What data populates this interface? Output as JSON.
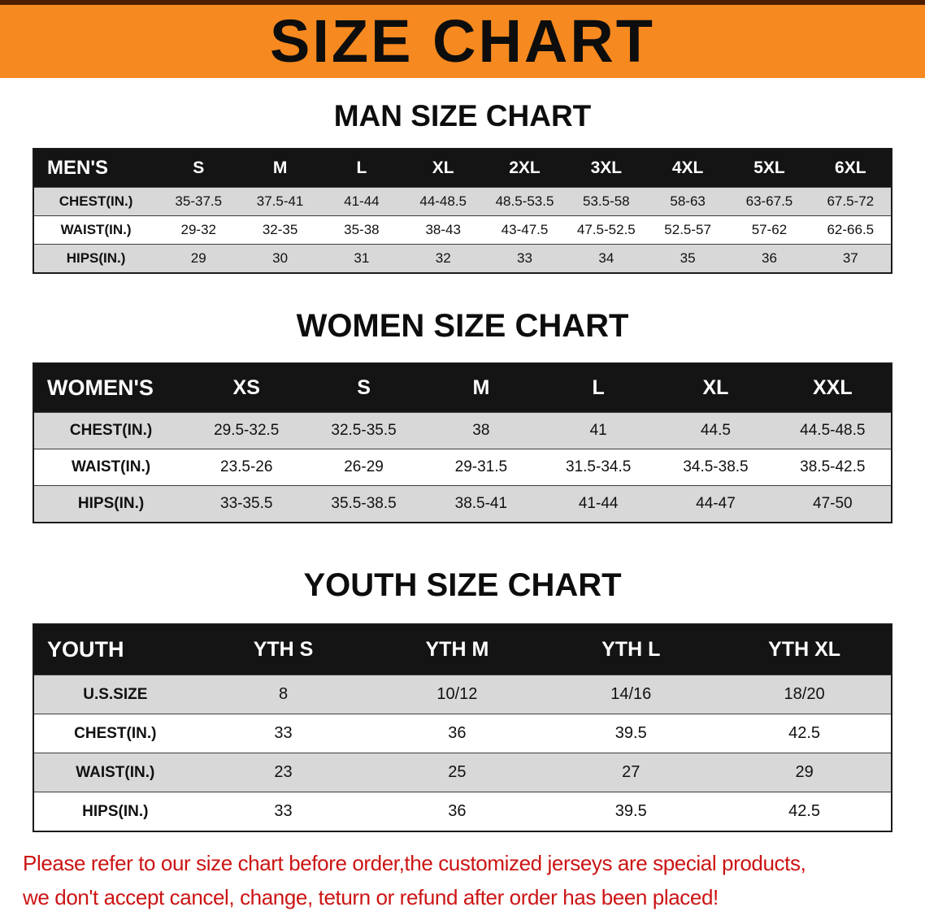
{
  "banner": {
    "title": "SIZE CHART"
  },
  "sections": [
    {
      "heading": "MAN SIZE CHART",
      "table": {
        "header": [
          "MEN'S",
          "S",
          "M",
          "L",
          "XL",
          "2XL",
          "3XL",
          "4XL",
          "5XL",
          "6XL"
        ],
        "rows": [
          [
            "CHEST(IN.)",
            "35-37.5",
            "37.5-41",
            "41-44",
            "44-48.5",
            "48.5-53.5",
            "53.5-58",
            "58-63",
            "63-67.5",
            "67.5-72"
          ],
          [
            "WAIST(IN.)",
            "29-32",
            "32-35",
            "35-38",
            "38-43",
            "43-47.5",
            "47.5-52.5",
            "52.5-57",
            "57-62",
            "62-66.5"
          ],
          [
            "HIPS(IN.)",
            "29",
            "30",
            "31",
            "32",
            "33",
            "34",
            "35",
            "36",
            "37"
          ]
        ]
      }
    },
    {
      "heading": "WOMEN SIZE CHART",
      "table": {
        "header": [
          "WOMEN'S",
          "XS",
          "S",
          "M",
          "L",
          "XL",
          "XXL"
        ],
        "rows": [
          [
            "CHEST(IN.)",
            "29.5-32.5",
            "32.5-35.5",
            "38",
            "41",
            "44.5",
            "44.5-48.5"
          ],
          [
            "WAIST(IN.)",
            "23.5-26",
            "26-29",
            "29-31.5",
            "31.5-34.5",
            "34.5-38.5",
            "38.5-42.5"
          ],
          [
            "HIPS(IN.)",
            "33-35.5",
            "35.5-38.5",
            "38.5-41",
            "41-44",
            "44-47",
            "47-50"
          ]
        ]
      }
    },
    {
      "heading": "YOUTH SIZE CHART",
      "table": {
        "header": [
          "YOUTH",
          "YTH S",
          "YTH M",
          "YTH L",
          "YTH XL"
        ],
        "rows": [
          [
            "U.S.SIZE",
            "8",
            "10/12",
            "14/16",
            "18/20"
          ],
          [
            "CHEST(IN.)",
            "33",
            "36",
            "39.5",
            "42.5"
          ],
          [
            "WAIST(IN.)",
            "23",
            "25",
            "27",
            "29"
          ],
          [
            "HIPS(IN.)",
            "33",
            "36",
            "39.5",
            "42.5"
          ]
        ]
      }
    }
  ],
  "footer": {
    "line1": "Please refer to our size chart before order,the customized jerseys are special products,",
    "line2": "we don't accept cancel, change, teturn or refund after order has been placed!"
  },
  "colors": {
    "banner_bg": "#f6891f",
    "header_bg": "#141414",
    "row_shade": "#d8d8d8",
    "footer_text": "#cc1414"
  }
}
